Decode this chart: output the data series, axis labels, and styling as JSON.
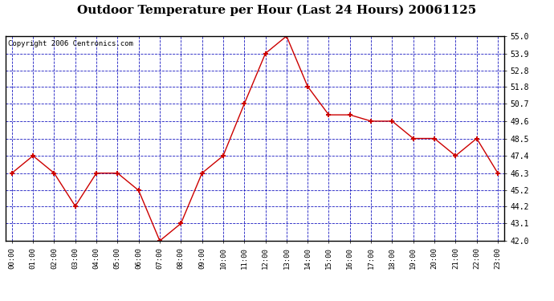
{
  "title": "Outdoor Temperature per Hour (Last 24 Hours) 20061125",
  "copyright": "Copyright 2006 Centronics.com",
  "hours": [
    "00:00",
    "01:00",
    "02:00",
    "03:00",
    "04:00",
    "05:00",
    "06:00",
    "07:00",
    "08:00",
    "09:00",
    "10:00",
    "11:00",
    "12:00",
    "13:00",
    "14:00",
    "15:00",
    "16:00",
    "17:00",
    "18:00",
    "19:00",
    "20:00",
    "21:00",
    "22:00",
    "23:00"
  ],
  "values": [
    46.3,
    47.4,
    46.3,
    44.2,
    46.3,
    46.3,
    45.2,
    42.0,
    43.1,
    46.3,
    47.4,
    50.7,
    53.9,
    55.0,
    51.8,
    50.0,
    50.0,
    49.6,
    49.6,
    48.5,
    48.5,
    47.4,
    48.5,
    46.3
  ],
  "ylim": [
    42.0,
    55.0
  ],
  "yticks": [
    42.0,
    43.1,
    44.2,
    45.2,
    46.3,
    47.4,
    48.5,
    49.6,
    50.7,
    51.8,
    52.8,
    53.9,
    55.0
  ],
  "line_color": "#cc0000",
  "marker_color": "#cc0000",
  "grid_color": "#0000bb",
  "bg_color": "#ffffff",
  "plot_bg_color": "#ffffff",
  "title_fontsize": 11,
  "copyright_fontsize": 6.5
}
